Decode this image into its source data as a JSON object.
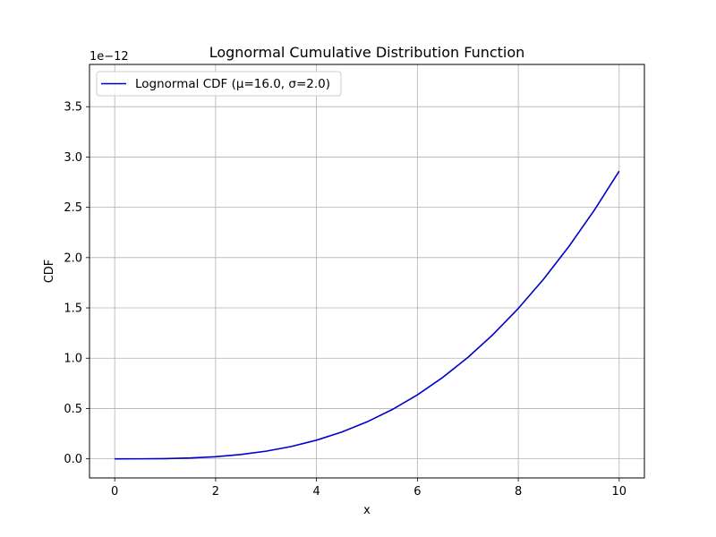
{
  "chart_data": {
    "type": "line",
    "title": "Lognormal Cumulative Distribution Function",
    "xlabel": "x",
    "ylabel": "CDF",
    "y_scale_label": "1e−12",
    "xlim": [
      -0.5,
      10.5
    ],
    "ylim": [
      -0.19,
      3.92
    ],
    "x_ticks": [
      0,
      2,
      4,
      6,
      8,
      10
    ],
    "x_tick_labels": [
      "0",
      "2",
      "4",
      "6",
      "8",
      "10"
    ],
    "y_ticks": [
      0.0,
      0.5,
      1.0,
      1.5,
      2.0,
      2.5,
      3.0,
      3.5
    ],
    "y_tick_labels": [
      "0.0",
      "0.5",
      "1.0",
      "1.5",
      "2.0",
      "2.5",
      "3.0",
      "3.5"
    ],
    "grid": true,
    "legend_position": "top-left",
    "series": [
      {
        "name": "Lognormal CDF (μ=16.0, σ=2.0)",
        "color": "#0000cc",
        "x": [
          0,
          0.5,
          1,
          1.5,
          2,
          2.5,
          3,
          3.5,
          4,
          4.5,
          5,
          5.5,
          6,
          6.5,
          7,
          7.5,
          8,
          8.5,
          9,
          9.5,
          10
        ],
        "y": [
          0.0,
          0.0002,
          0.0022,
          0.0082,
          0.0209,
          0.0426,
          0.0757,
          0.1225,
          0.1852,
          0.2659,
          0.3667,
          0.4894,
          0.6359,
          0.8081,
          1.0075,
          1.2358,
          1.4944,
          1.7848,
          2.1084,
          2.4664,
          2.86
        ]
      }
    ]
  }
}
